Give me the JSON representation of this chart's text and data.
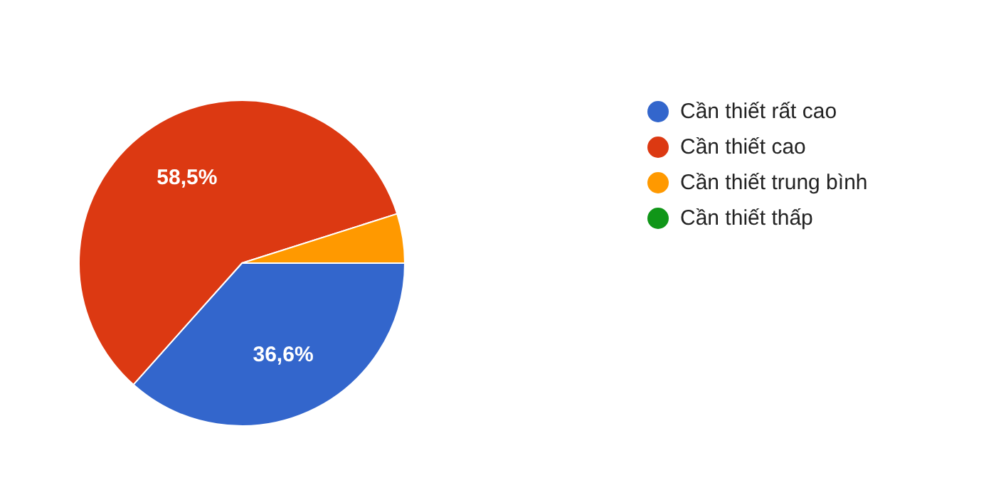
{
  "chart_data": {
    "type": "pie",
    "categories": [
      "Cần thiết rất cao",
      "Cần thiết cao",
      "Cần thiết trung bình",
      "Cần thiết thấp"
    ],
    "values": [
      36.6,
      58.5,
      4.9,
      0
    ],
    "value_labels": [
      "36,6%",
      "58,5%",
      null,
      null
    ],
    "colors": [
      "#3366cc",
      "#dc3912",
      "#ff9900",
      "#109618"
    ],
    "legend": "right"
  }
}
